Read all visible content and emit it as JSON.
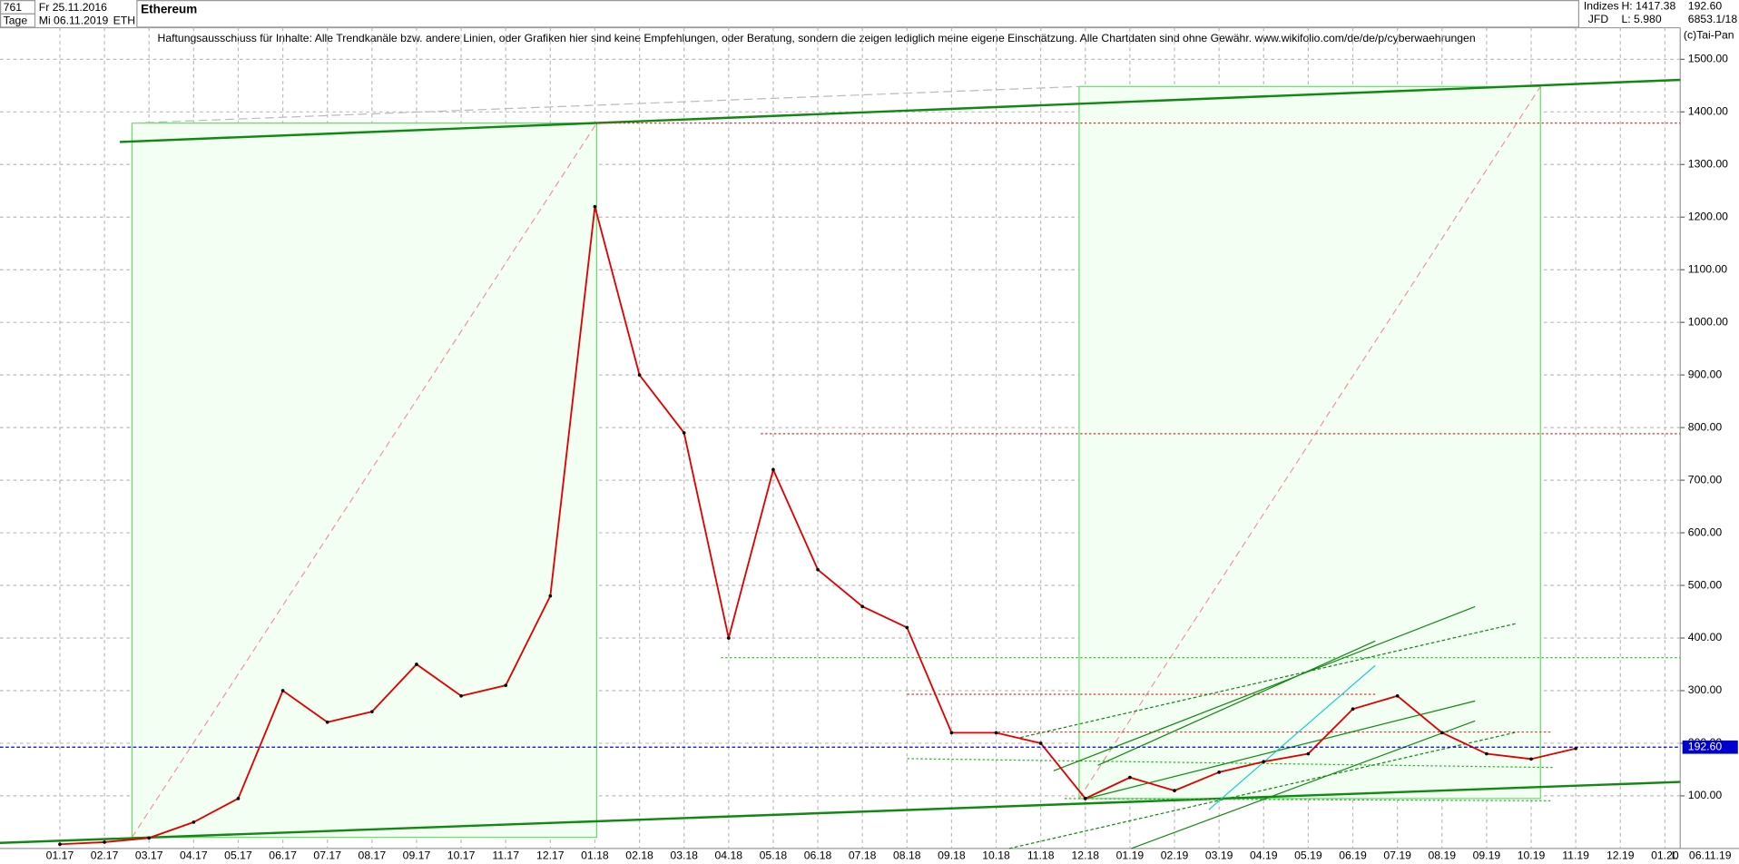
{
  "header": {
    "count": "761",
    "start_date": "Fr 25.11.2016",
    "period": "Tage",
    "end_date": "Mi 06.11.2019",
    "symbol": "ETH",
    "group": "Indizes",
    "source": "JFD",
    "high": "H: 1417.38",
    "low": "L: 5.980",
    "last": "192.60",
    "info": "6853.1/18",
    "copyright": "(c)Tai-Pan"
  },
  "chart_data": {
    "type": "line",
    "title": "Ethereum",
    "subtitle": "Haftungsausschluss für Inhalte: Alle Trendkanäle bzw. andere Linien, oder Grafiken hier sind keine Empfehlungen, oder Beratung, sondern die zeigen lediglich meine eigene Einschätzung. Alle Chartdaten sind ohne Gewähr.  www.wikifolio.com/de/de/p/cyberwaehrungen",
    "categories": [
      "01.17",
      "02.17",
      "03.17",
      "04.17",
      "05.17",
      "06.17",
      "07.17",
      "08.17",
      "09.17",
      "10.17",
      "11.17",
      "12.17",
      "01.18",
      "02.18",
      "03.18",
      "04.18",
      "05.18",
      "06.18",
      "07.18",
      "08.18",
      "09.18",
      "10.18",
      "11.18",
      "12.18",
      "01.19",
      "02.19",
      "03.19",
      "04.19",
      "05.19",
      "06.19",
      "07.19",
      "08.19",
      "09.19",
      "10.19",
      "11.19",
      "12.19",
      "01.20"
    ],
    "series": [
      {
        "name": "Ethereum",
        "color": "#e00000",
        "values": [
          8,
          12,
          20,
          50,
          95,
          300,
          240,
          260,
          350,
          290,
          310,
          480,
          1220,
          900,
          790,
          400,
          720,
          530,
          460,
          420,
          220,
          220,
          200,
          95,
          135,
          110,
          145,
          165,
          180,
          265,
          290,
          220,
          180,
          170,
          190,
          null,
          null
        ]
      }
    ],
    "ylim": [
      0,
      1560
    ],
    "yticks": [
      {
        "value": 100,
        "label": "100.00"
      },
      {
        "value": 200,
        "label": "200.00"
      },
      {
        "value": 300,
        "label": "300.00"
      },
      {
        "value": 400,
        "label": "400.00"
      },
      {
        "value": 500,
        "label": "500.00"
      },
      {
        "value": 600,
        "label": "600.00"
      },
      {
        "value": 700,
        "label": "700.00"
      },
      {
        "value": 800,
        "label": "800.00"
      },
      {
        "value": 900,
        "label": "900.00"
      },
      {
        "value": 1000,
        "label": "1000.00"
      },
      {
        "value": 1100,
        "label": "1100.00"
      },
      {
        "value": 1200,
        "label": "1200.00"
      },
      {
        "value": 1300,
        "label": "1300.00"
      },
      {
        "value": 1400,
        "label": "1400.00"
      },
      {
        "value": 1500,
        "label": "1500.00"
      }
    ],
    "last_price": {
      "value": 192.6,
      "label": "192.60",
      "color": "#0000cc"
    },
    "end_marker": "L",
    "end_date_label": "06.11.19",
    "grid": true
  }
}
